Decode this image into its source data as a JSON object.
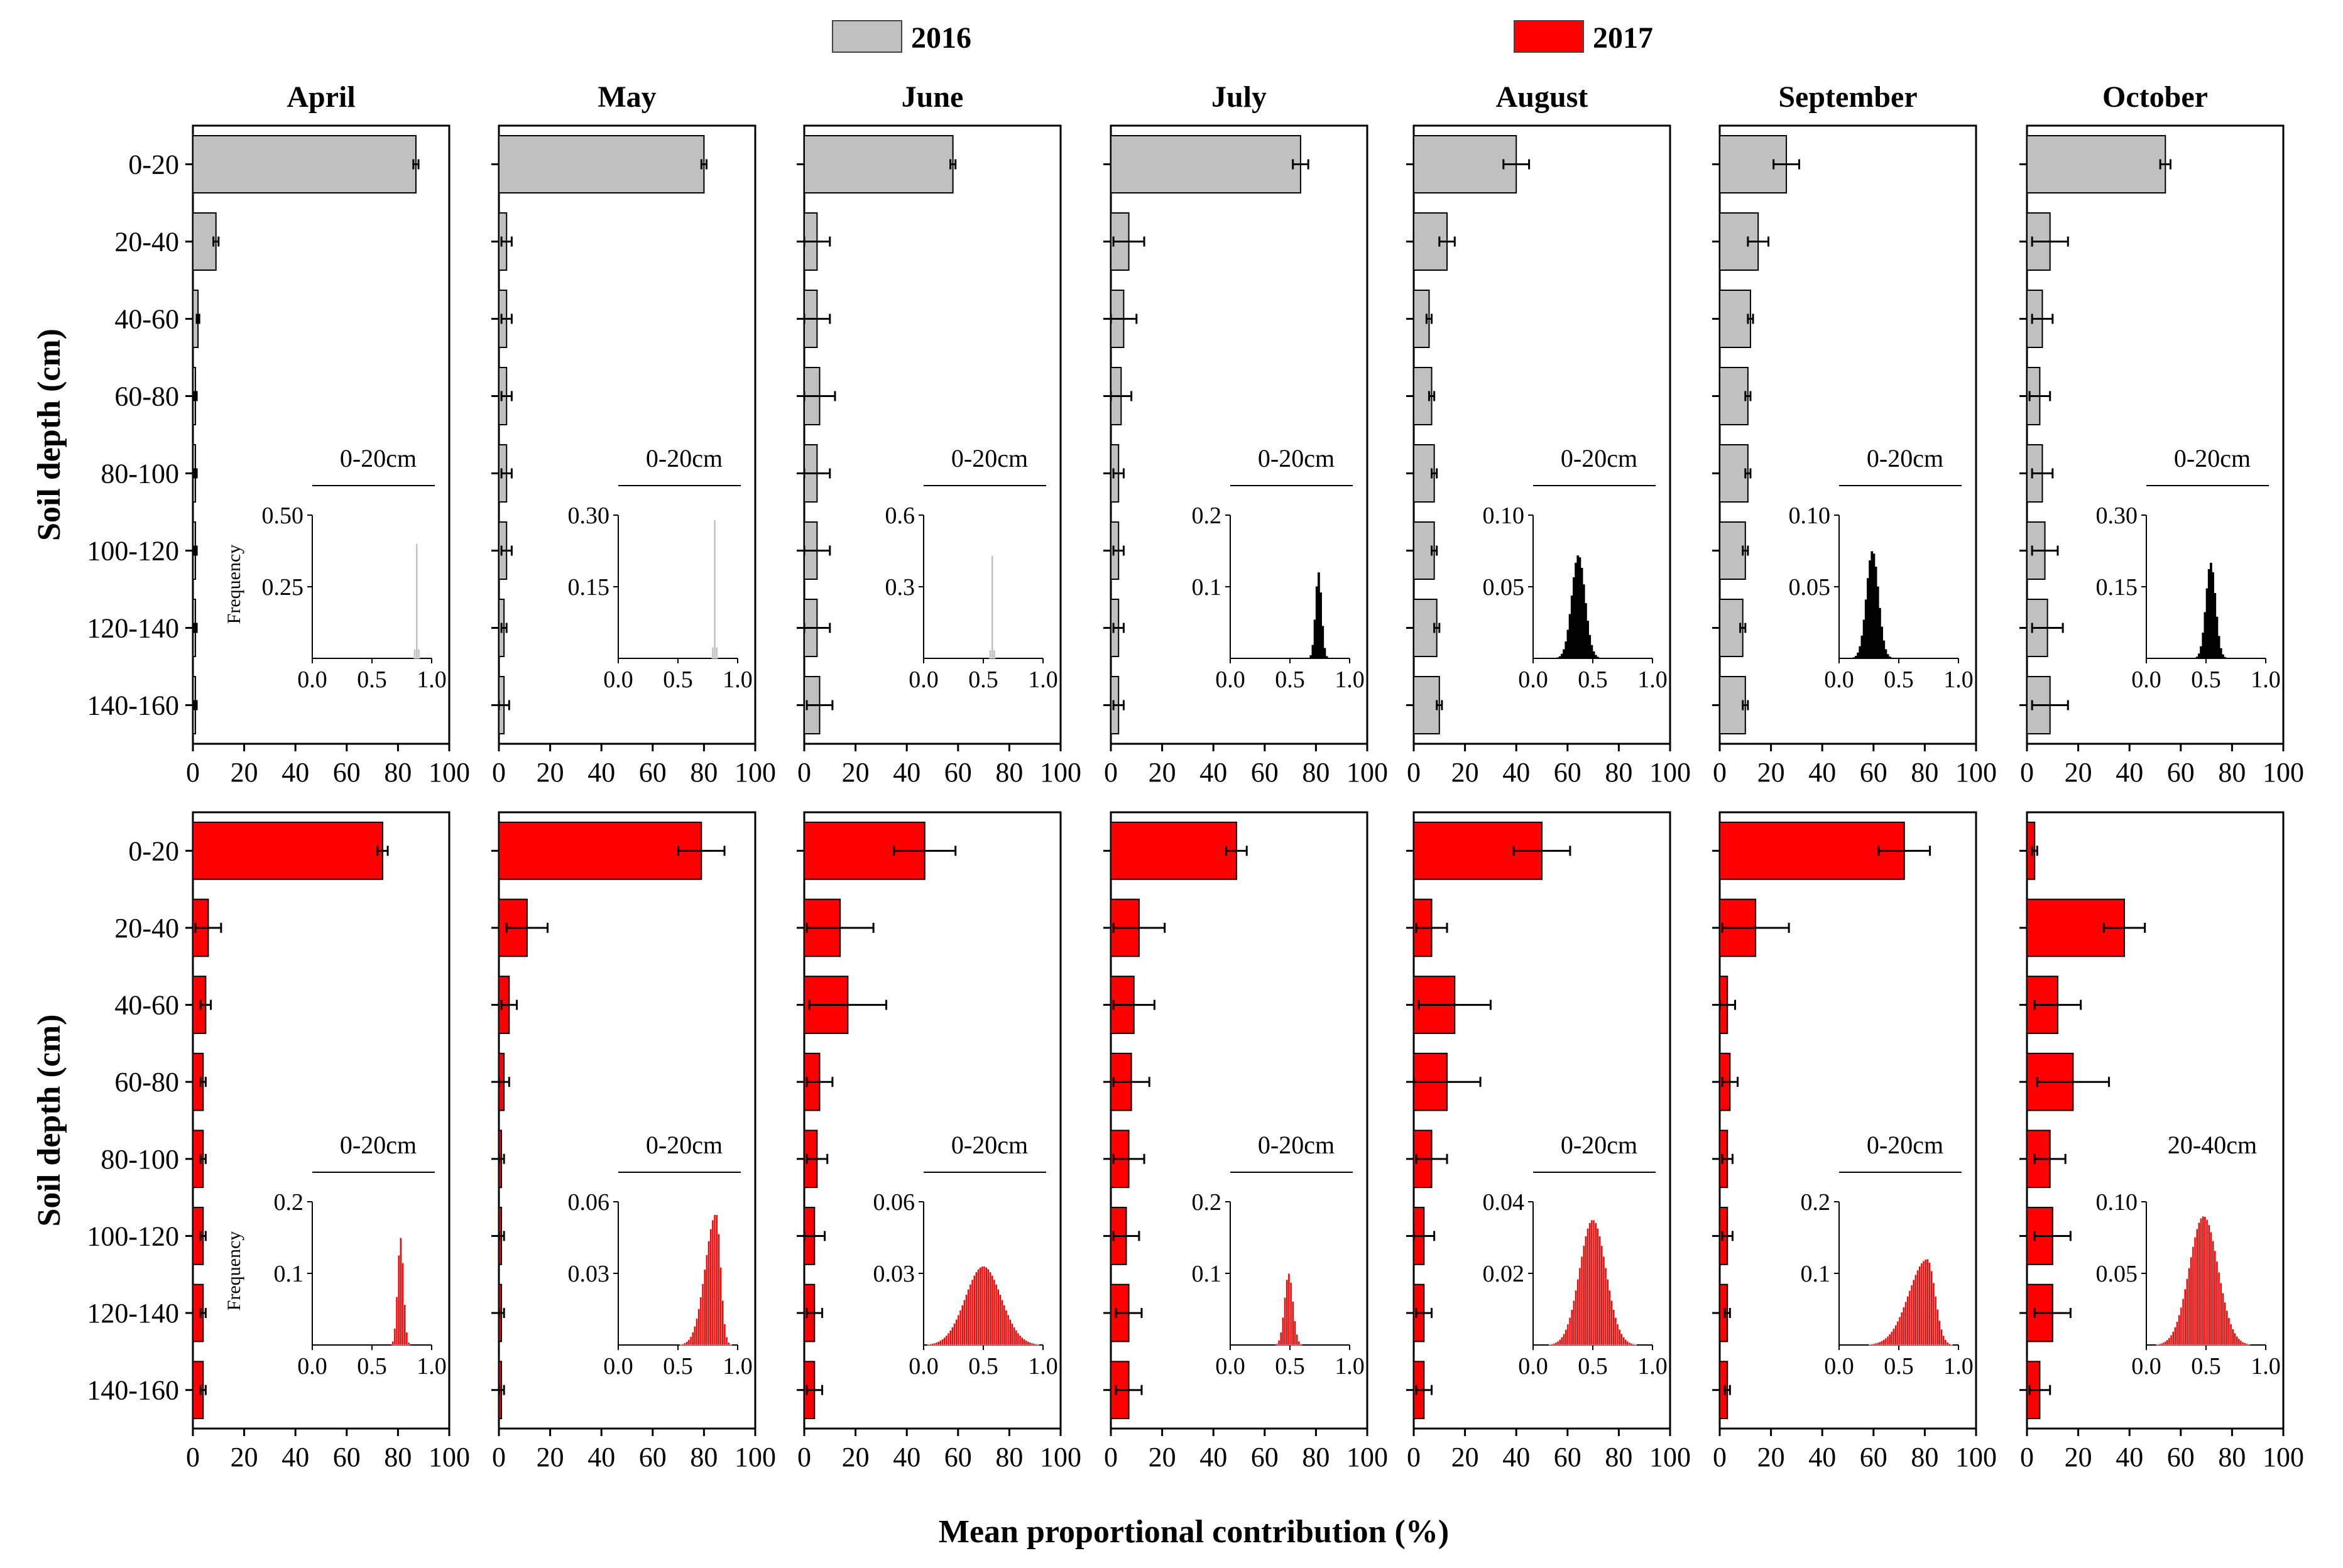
{
  "chart_data": {
    "type": "bar",
    "orientation": "horizontal",
    "legend": [
      {
        "label": "2016",
        "color": "#c0c0c0"
      },
      {
        "label": "2017",
        "color": "#ff0000"
      }
    ],
    "legend_position": "top-center",
    "ylabel": "Soil depth (cm)",
    "xlabel": "Mean proportional contribution (%)",
    "xlim": [
      0,
      100
    ],
    "xticks": [
      "0",
      "20",
      "40",
      "60",
      "80",
      "100"
    ],
    "categories": [
      "0-20",
      "20-40",
      "40-60",
      "60-80",
      "80-100",
      "100-120",
      "120-140",
      "140-160"
    ],
    "months": [
      "April",
      "May",
      "June",
      "July",
      "August",
      "September",
      "October"
    ],
    "rows": [
      {
        "year": "2016",
        "color": "#c0c0c0",
        "panels": [
          {
            "month": "April",
            "values": [
              87,
              9,
              2,
              1,
              1,
              1,
              1,
              1
            ],
            "errors": [
              1,
              1,
              0.5,
              0.5,
              0.5,
              0.5,
              0.5,
              0.5
            ],
            "inset": {
              "label": "0-20cm",
              "ymax": 0.5,
              "yticks": [
                "0.25",
                "0.50"
              ],
              "xticks": [
                "0.0",
                "0.5",
                "1.0"
              ],
              "mean": 0.87,
              "sd": 0.008,
              "peak": 0.4,
              "show_ylabel": true,
              "ylabel": "Frequency"
            }
          },
          {
            "month": "May",
            "values": [
              80,
              3,
              3,
              3,
              3,
              3,
              2,
              2
            ],
            "errors": [
              1,
              2,
              2,
              2,
              2,
              2,
              1,
              2
            ],
            "inset": {
              "label": "0-20cm",
              "ymax": 0.3,
              "yticks": [
                "0.15",
                "0.30"
              ],
              "xticks": [
                "0.0",
                "0.5",
                "1.0"
              ],
              "mean": 0.8,
              "sd": 0.008,
              "peak": 0.29
            }
          },
          {
            "month": "June",
            "values": [
              58,
              5,
              5,
              6,
              5,
              5,
              5,
              6
            ],
            "errors": [
              1,
              5,
              5,
              6,
              5,
              5,
              5,
              5
            ],
            "inset": {
              "label": "0-20cm",
              "ymax": 0.6,
              "yticks": [
                "0.3",
                "0.6"
              ],
              "xticks": [
                "0.0",
                "0.5",
                "1.0"
              ],
              "mean": 0.58,
              "sd": 0.006,
              "peak": 0.43
            }
          },
          {
            "month": "July",
            "values": [
              74,
              7,
              5,
              4,
              3,
              3,
              3,
              3
            ],
            "errors": [
              3,
              6,
              5,
              4,
              2,
              2,
              2,
              2
            ],
            "inset": {
              "label": "0-20cm",
              "ymax": 0.2,
              "yticks": [
                "0.1",
                "0.2"
              ],
              "xticks": [
                "0.0",
                "0.5",
                "1.0"
              ],
              "mean": 0.74,
              "sd": 0.025,
              "peak": 0.12,
              "fill": "#000000"
            }
          },
          {
            "month": "August",
            "values": [
              40,
              13,
              6,
              7,
              8,
              8,
              9,
              10
            ],
            "errors": [
              5,
              3,
              1,
              1,
              1,
              1,
              1,
              1
            ],
            "inset": {
              "label": "0-20cm",
              "ymax": 0.1,
              "yticks": [
                "0.05",
                "0.10"
              ],
              "xticks": [
                "0.0",
                "0.5",
                "1.0"
              ],
              "mean": 0.38,
              "sd": 0.055,
              "peak": 0.072,
              "fill": "#000000"
            }
          },
          {
            "month": "September",
            "values": [
              26,
              15,
              12,
              11,
              11,
              10,
              9,
              10
            ],
            "errors": [
              5,
              4,
              1,
              1,
              1,
              1,
              1,
              1
            ],
            "inset": {
              "label": "0-20cm",
              "ymax": 0.1,
              "yticks": [
                "0.05",
                "0.10"
              ],
              "xticks": [
                "0.0",
                "0.5",
                "1.0"
              ],
              "mean": 0.28,
              "sd": 0.05,
              "peak": 0.075,
              "fill": "#000000"
            }
          },
          {
            "month": "October",
            "values": [
              54,
              9,
              6,
              5,
              6,
              7,
              8,
              9
            ],
            "errors": [
              2,
              7,
              4,
              4,
              4,
              5,
              6,
              7
            ],
            "inset": {
              "label": "0-20cm",
              "ymax": 0.3,
              "yticks": [
                "0.15",
                "0.30"
              ],
              "xticks": [
                "0.0",
                "0.5",
                "1.0"
              ],
              "mean": 0.54,
              "sd": 0.04,
              "peak": 0.2,
              "fill": "#000000"
            }
          }
        ]
      },
      {
        "year": "2017",
        "color": "#ff0000",
        "panels": [
          {
            "month": "April",
            "values": [
              74,
              6,
              5,
              4,
              4,
              4,
              4,
              4
            ],
            "errors": [
              2,
              5,
              2,
              1,
              1,
              1,
              1,
              1
            ],
            "inset": {
              "label": "0-20cm",
              "ymax": 0.2,
              "yticks": [
                "0.1",
                "0.2"
              ],
              "xticks": [
                "0.0",
                "0.5",
                "1.0"
              ],
              "mean": 0.74,
              "sd": 0.025,
              "peak": 0.15,
              "show_ylabel": true,
              "ylabel": "Frequency"
            }
          },
          {
            "month": "May",
            "values": [
              79,
              11,
              4,
              2,
              1,
              1,
              1,
              1
            ],
            "errors": [
              9,
              8,
              3,
              2,
              1,
              1,
              1,
              1
            ],
            "inset": {
              "label": "0-20cm",
              "ymax": 0.06,
              "yticks": [
                "0.03",
                "0.06"
              ],
              "xticks": [
                "0.0",
                "0.5",
                "1.0"
              ],
              "mean": 0.82,
              "sd": 0.07,
              "skew": true,
              "peak": 0.055
            }
          },
          {
            "month": "June",
            "values": [
              47,
              14,
              17,
              6,
              5,
              4,
              4,
              4
            ],
            "errors": [
              12,
              13,
              15,
              5,
              4,
              4,
              3,
              3
            ],
            "inset": {
              "label": "0-20cm",
              "ymax": 0.06,
              "yticks": [
                "0.03",
                "0.06"
              ],
              "xticks": [
                "0.0",
                "0.5",
                "1.0"
              ],
              "mean": 0.5,
              "sd": 0.15,
              "peak": 0.033
            }
          },
          {
            "month": "July",
            "values": [
              49,
              11,
              9,
              8,
              7,
              6,
              7,
              7
            ],
            "errors": [
              4,
              10,
              8,
              7,
              6,
              5,
              5,
              5
            ],
            "inset": {
              "label": "0-20cm",
              "ymax": 0.2,
              "yticks": [
                "0.1",
                "0.2"
              ],
              "xticks": [
                "0.0",
                "0.5",
                "1.0"
              ],
              "mean": 0.49,
              "sd": 0.035,
              "peak": 0.1
            }
          },
          {
            "month": "August",
            "values": [
              50,
              7,
              16,
              13,
              7,
              4,
              4,
              4
            ],
            "errors": [
              11,
              6,
              14,
              13,
              6,
              4,
              3,
              3
            ],
            "inset": {
              "label": "0-20cm",
              "ymax": 0.04,
              "yticks": [
                "0.02",
                "0.04"
              ],
              "xticks": [
                "0.0",
                "0.5",
                "1.0"
              ],
              "mean": 0.5,
              "sd": 0.11,
              "peak": 0.035
            }
          },
          {
            "month": "September",
            "values": [
              72,
              14,
              3,
              4,
              3,
              3,
              3,
              3
            ],
            "errors": [
              10,
              13,
              3,
              3,
              2,
              2,
              1,
              1
            ],
            "inset": {
              "label": "0-20cm",
              "ymax": 0.2,
              "yticks": [
                "0.1",
                "0.2"
              ],
              "xticks": [
                "0.0",
                "0.5",
                "1.0"
              ],
              "mean": 0.74,
              "sd": 0.12,
              "skew": true,
              "peak": 0.12
            }
          },
          {
            "month": "October",
            "values": [
              3,
              38,
              12,
              18,
              9,
              10,
              10,
              5
            ],
            "errors": [
              1,
              8,
              9,
              14,
              6,
              7,
              7,
              4
            ],
            "inset": {
              "label": "20-40cm",
              "ymax": 0.1,
              "yticks": [
                "0.05",
                "0.10"
              ],
              "xticks": [
                "0.0",
                "0.5",
                "1.0"
              ],
              "mean": 0.48,
              "sd": 0.12,
              "peak": 0.09,
              "no_underline": true
            }
          }
        ]
      }
    ]
  }
}
